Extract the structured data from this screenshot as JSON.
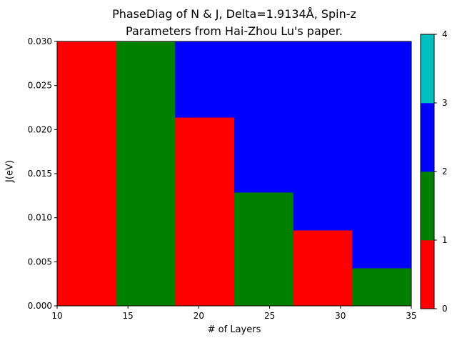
{
  "chart_data": {
    "type": "heatmap",
    "title": "PhaseDiag of N & J, Delta=1.9134Å, Spin-z",
    "subtitle": "Parameters from Hai-Zhou Lu's paper.",
    "xlabel": "# of Layers",
    "ylabel": "J(eV)",
    "xlim": [
      10,
      35
    ],
    "ylim": [
      0,
      0.03
    ],
    "x_ticks": [
      "10",
      "15",
      "20",
      "25",
      "30",
      "35"
    ],
    "y_ticks": [
      "0.000",
      "0.005",
      "0.010",
      "0.015",
      "0.020",
      "0.025",
      "0.030"
    ],
    "x_edges": [
      10,
      14.17,
      18.33,
      22.5,
      26.67,
      30.83,
      35
    ],
    "columns": [
      {
        "layers": "10-14",
        "segments": [
          {
            "from": 0,
            "to": 0.03,
            "value": 0
          }
        ]
      },
      {
        "layers": "14-18",
        "segments": [
          {
            "from": 0,
            "to": 0.03,
            "value": 1
          }
        ]
      },
      {
        "layers": "18-22",
        "segments": [
          {
            "from": 0,
            "to": 0.0214,
            "value": 0
          },
          {
            "from": 0.0214,
            "to": 0.03,
            "value": 2
          }
        ]
      },
      {
        "layers": "22-27",
        "segments": [
          {
            "from": 0,
            "to": 0.0129,
            "value": 1
          },
          {
            "from": 0.0129,
            "to": 0.03,
            "value": 2
          }
        ]
      },
      {
        "layers": "27-31",
        "segments": [
          {
            "from": 0,
            "to": 0.0086,
            "value": 0
          },
          {
            "from": 0.0086,
            "to": 0.03,
            "value": 2
          }
        ]
      },
      {
        "layers": "31-35",
        "segments": [
          {
            "from": 0,
            "to": 0.0043,
            "value": 1
          },
          {
            "from": 0.0043,
            "to": 0.03,
            "value": 2
          }
        ]
      }
    ],
    "colorbar": {
      "ticks": [
        "0",
        "1",
        "2",
        "3",
        "4"
      ],
      "bins": [
        {
          "from": 0,
          "to": 1,
          "color": "#ff0000"
        },
        {
          "from": 1,
          "to": 2,
          "color": "#008000"
        },
        {
          "from": 2,
          "to": 3,
          "color": "#0000ff"
        },
        {
          "from": 3,
          "to": 4,
          "color": "#00bfbf"
        }
      ]
    },
    "grid": false
  }
}
